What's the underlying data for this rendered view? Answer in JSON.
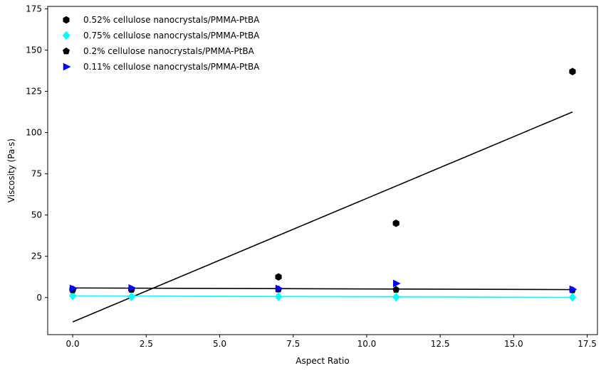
{
  "chart_data": {
    "type": "scatter",
    "title": "",
    "xlabel": "Aspect Ratio",
    "ylabel": "Viscosity (Pa·s)",
    "xlim": [
      -0.85,
      17.85
    ],
    "ylim": [
      -22.5,
      176.5
    ],
    "xticks": [
      0.0,
      2.5,
      5.0,
      7.5,
      10.0,
      12.5,
      15.0,
      17.5
    ],
    "xtick_labels": [
      "0.0",
      "2.5",
      "5.0",
      "7.5",
      "10.0",
      "12.5",
      "15.0",
      "17.5"
    ],
    "yticks": [
      0,
      25,
      50,
      75,
      100,
      125,
      150,
      175
    ],
    "ytick_labels": [
      "0",
      "25",
      "50",
      "75",
      "100",
      "125",
      "150",
      "175"
    ],
    "grid": false,
    "legend_position": "top-left",
    "series": [
      {
        "name": "0.52% cellulose nanocrystals/PMMA-PtBA",
        "marker": "hexagon",
        "color": "#000000",
        "x": [
          0,
          2,
          7,
          11,
          17
        ],
        "y": [
          5.0,
          5.0,
          12.5,
          45.0,
          137.0
        ],
        "fit": {
          "x": [
            0,
            17
          ],
          "y": [
            -14.8,
            112.5
          ],
          "color": "#000000"
        }
      },
      {
        "name": "0.75% cellulose nanocrystals/PMMA-PtBA",
        "marker": "diamond",
        "color": "#00ffff",
        "x": [
          0,
          2,
          7,
          11,
          17
        ],
        "y": [
          1.0,
          0.5,
          0.5,
          0.2,
          0.1
        ],
        "fit": {
          "x": [
            0,
            17
          ],
          "y": [
            1.0,
            0.1
          ],
          "color": "#00ffff"
        }
      },
      {
        "name": "0.2% cellulose nanocrystals/PMMA-PtBA",
        "marker": "pentagon",
        "color": "#000000",
        "x": [
          0,
          2,
          7,
          11,
          17
        ],
        "y": [
          4.5,
          4.8,
          5.0,
          4.8,
          4.5
        ],
        "fit": {
          "x": [
            0,
            17
          ],
          "y": [
            5.8,
            4.8
          ],
          "color": "#000000"
        }
      },
      {
        "name": "0.11% cellulose nanocrystals/PMMA-PtBA",
        "marker": "triangle-right",
        "color": "#0000ff",
        "x": [
          0,
          2,
          7,
          11,
          17
        ],
        "y": [
          5.5,
          5.8,
          5.5,
          8.5,
          5.0
        ],
        "fit": null
      }
    ]
  }
}
